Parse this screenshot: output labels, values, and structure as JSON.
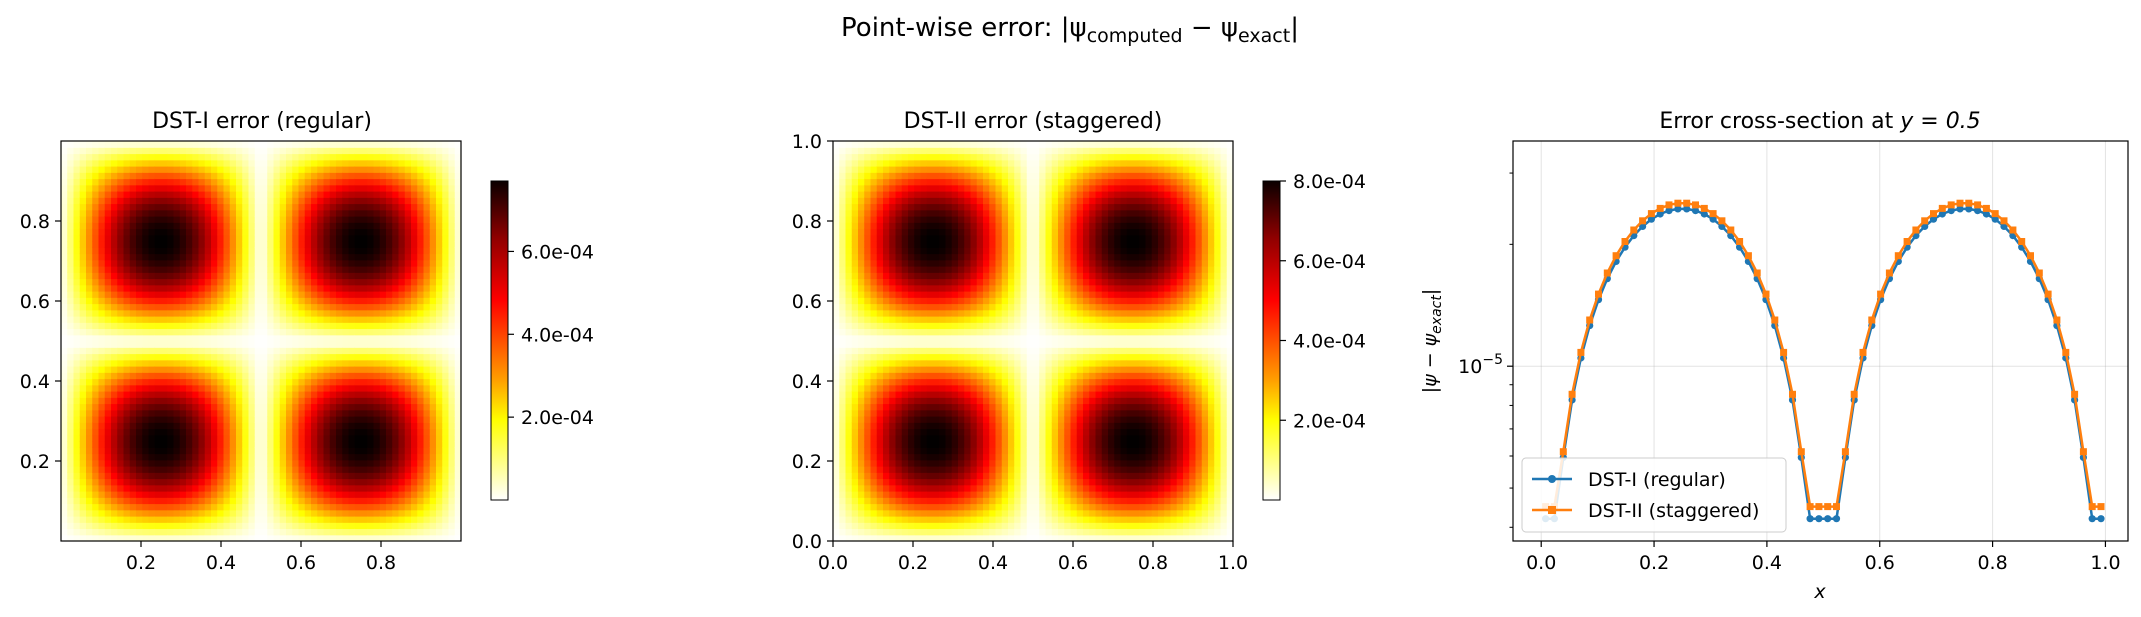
{
  "figure": {
    "suptitle_main": "Point-wise error: |ψ",
    "suptitle_sub1": "computed",
    "suptitle_mid": " − ψ",
    "suptitle_sub2": "exact",
    "suptitle_end": "|"
  },
  "chart_data": [
    {
      "type": "heatmap",
      "title": "DST-I error (regular)",
      "x_ticks": [
        "0.2",
        "0.4",
        "0.6",
        "0.8"
      ],
      "y_ticks": [
        "0.2",
        "0.4",
        "0.6",
        "0.8"
      ],
      "xlim": [
        0,
        1
      ],
      "ylim": [
        0,
        1
      ],
      "field": "amplitude * |sin(2πx) sin(2πy)|",
      "grid_n": 64,
      "colormap": "hot_r",
      "colorbar": {
        "min": 0,
        "max": 0.00077,
        "ticks": [
          0.0002,
          0.0004,
          0.0006
        ],
        "tick_labels": [
          "2.0e-04",
          "4.0e-04",
          "6.0e-04"
        ]
      }
    },
    {
      "type": "heatmap",
      "title": "DST-II error (staggered)",
      "x_ticks": [
        "0.0",
        "0.2",
        "0.4",
        "0.6",
        "0.8",
        "1.0"
      ],
      "y_ticks": [
        "0.0",
        "0.2",
        "0.4",
        "0.6",
        "0.8",
        "1.0"
      ],
      "xlim": [
        0,
        1
      ],
      "ylim": [
        0,
        1
      ],
      "field": "amplitude * |sin(2πx) sin(2πy)|",
      "grid_n": 64,
      "colormap": "hot_r",
      "colorbar": {
        "min": 0,
        "max": 0.0008,
        "ticks": [
          0.0002,
          0.0004,
          0.0006,
          0.0008
        ],
        "tick_labels": [
          "2.0e-04",
          "4.0e-04",
          "6.0e-04",
          "8.0e-04"
        ]
      }
    },
    {
      "type": "line",
      "title_prefix": "Error cross-section at ",
      "title_math": "y = 0.5",
      "xlabel": "x",
      "ylabel_main": "|ψ − ψ",
      "ylabel_sub": "exact",
      "ylabel_end": "|",
      "y_scale": "log",
      "xlim": [
        -0.05,
        1.04
      ],
      "ylim": [
        3.7e-06,
        3.6e-05
      ],
      "x_ticks": [
        "0.0",
        "0.2",
        "0.4",
        "0.6",
        "0.8",
        "1.0"
      ],
      "y_tick_base": "10",
      "y_tick_exp": "−5",
      "grid": true,
      "legend_position": "lower-left",
      "x_grid_n": 64,
      "series": [
        {
          "name": "DST-I (regular)",
          "color": "#1f77b4",
          "marker": "circle",
          "peak": 2.45e-05,
          "floor": 4.2e-06
        },
        {
          "name": "DST-II (staggered)",
          "color": "#ff7f0e",
          "marker": "square",
          "peak": 2.53e-05,
          "floor": 4.5e-06
        }
      ]
    }
  ]
}
